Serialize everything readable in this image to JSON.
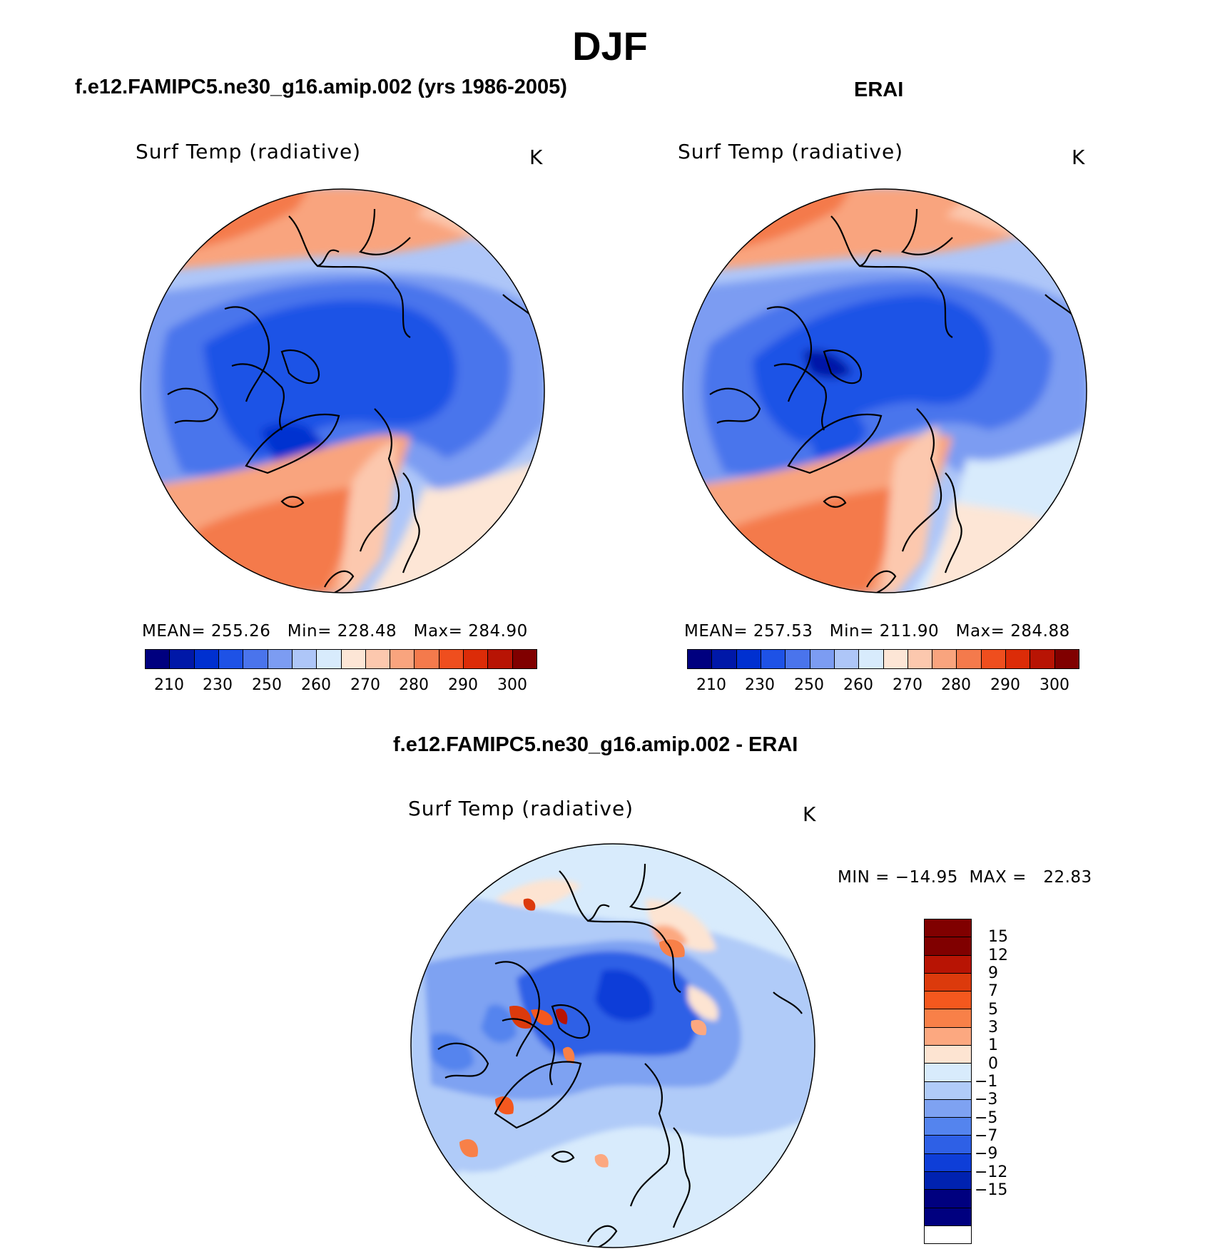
{
  "page": {
    "title": "DJF"
  },
  "panels": {
    "model": {
      "heading": "f.e12.FAMIPC5.ne30_g16.amip.002 (yrs 1986-2005)",
      "variable": "Surf Temp (radiative)",
      "units": "K",
      "stats": "MEAN= 255.26   Min= 228.48   Max= 284.90"
    },
    "obs": {
      "heading": "ERAI",
      "variable": "Surf Temp (radiative)",
      "units": "K",
      "stats": "MEAN= 257.53   Min= 211.90   Max= 284.88"
    },
    "diff": {
      "heading": "f.e12.FAMIPC5.ne30_g16.amip.002 - ERAI",
      "variable": "Surf Temp (radiative)",
      "units": "K",
      "stats": "MIN = −14.95  MAX =   22.83"
    }
  },
  "colorbar_abs": {
    "colors": [
      "#00007f",
      "#0018a8",
      "#0030d0",
      "#1e52e6",
      "#4a74ec",
      "#7c9cf2",
      "#aec6f8",
      "#d8ebfc",
      "#fde6d6",
      "#fcc8ae",
      "#f9a47e",
      "#f47a4c",
      "#ef4e1e",
      "#dc2c08",
      "#b81404",
      "#800000"
    ],
    "ticks": [
      "210",
      "230",
      "250",
      "260",
      "270",
      "280",
      "290",
      "300"
    ]
  },
  "colorbar_diff": {
    "colors": [
      "#800000",
      "#b81404",
      "#dc3a0c",
      "#f4581e",
      "#f88048",
      "#fca880",
      "#fde4d2",
      "#d8ebfc",
      "#b0cbf8",
      "#7ea2f2",
      "#5484ee",
      "#2e60e6",
      "#0e3ed8",
      "#0022b0",
      "#00007f"
    ],
    "ticks": [
      "15",
      "12",
      "9",
      "7",
      "5",
      "3",
      "1",
      "0",
      "−1",
      "−3",
      "−5",
      "−7",
      "−9",
      "−12",
      "−15"
    ]
  }
}
